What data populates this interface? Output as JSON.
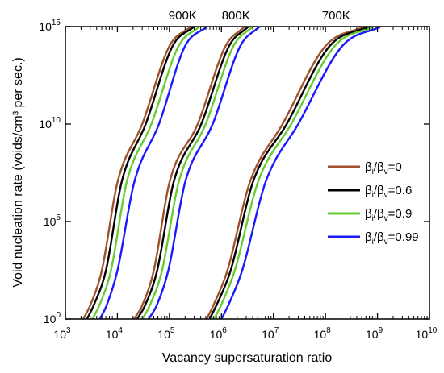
{
  "chart_data": {
    "type": "line",
    "title": "",
    "xlabel": "Vacancy supersaturation ratio",
    "ylabel": "Void nucleation rate (voids/cm³ per sec.)",
    "x_scale": "log",
    "y_scale": "log",
    "xlim": [
      1000,
      10000000000
    ],
    "ylim": [
      1,
      1000000000000000
    ],
    "grid": false,
    "legend_position": "right",
    "x_ticks": [
      {
        "value": 1000,
        "base": "10",
        "exp": "3"
      },
      {
        "value": 10000,
        "base": "10",
        "exp": "4"
      },
      {
        "value": 100000,
        "base": "10",
        "exp": "5"
      },
      {
        "value": 1000000,
        "base": "10",
        "exp": "6"
      },
      {
        "value": 10000000,
        "base": "10",
        "exp": "7"
      },
      {
        "value": 100000000,
        "base": "10",
        "exp": "8"
      },
      {
        "value": 1000000000,
        "base": "10",
        "exp": "9"
      },
      {
        "value": 10000000000,
        "base": "10",
        "exp": "10"
      }
    ],
    "y_ticks": [
      {
        "value": 1,
        "base": "10",
        "exp": "0"
      },
      {
        "value": 100000,
        "base": "10",
        "exp": "5"
      },
      {
        "value": 10000000000,
        "base": "10",
        "exp": "10"
      },
      {
        "value": 1000000000000000,
        "base": "10",
        "exp": "15"
      }
    ],
    "annotations": [
      {
        "text": "900K",
        "at_x": 180000
      },
      {
        "text": "800K",
        "at_x": 1900000
      },
      {
        "text": "700K",
        "at_x": 160000000
      }
    ],
    "legend": [
      {
        "base": "β",
        "sub1": "i",
        "mid": "/β",
        "sub2": "v",
        "suffix": "=0",
        "color": "#a0522d"
      },
      {
        "base": "β",
        "sub1": "i",
        "mid": "/β",
        "sub2": "v",
        "suffix": "=0.6",
        "color": "#000000"
      },
      {
        "base": "β",
        "sub1": "i",
        "mid": "/β",
        "sub2": "v",
        "suffix": "=0.9",
        "color": "#66cc33"
      },
      {
        "base": "β",
        "sub1": "i",
        "mid": "/β",
        "sub2": "v",
        "suffix": "=0.99",
        "color": "#1a1aff"
      }
    ],
    "series": [
      {
        "temperature": "900K",
        "beta_ratio": "0",
        "color": "#a0522d",
        "x": [
          2200,
          3000,
          5000,
          10000,
          30000,
          100000,
          260000
        ],
        "y": [
          1,
          5,
          300,
          10000000,
          10000000000,
          100000000000000,
          1000000000000000
        ]
      },
      {
        "temperature": "900K",
        "beta_ratio": "0.6",
        "color": "#000000",
        "x": [
          2600,
          3500,
          6000,
          12000,
          35000,
          115000,
          300000
        ],
        "y": [
          1,
          5,
          300,
          10000000,
          10000000000,
          100000000000000,
          1000000000000000
        ]
      },
      {
        "temperature": "900K",
        "beta_ratio": "0.9",
        "color": "#66cc33",
        "x": [
          3300,
          4500,
          7500,
          15000,
          45000,
          150000,
          380000
        ],
        "y": [
          1,
          5,
          300,
          10000000,
          10000000000,
          100000000000000,
          1000000000000000
        ]
      },
      {
        "temperature": "900K",
        "beta_ratio": "0.99",
        "color": "#1a1aff",
        "x": [
          4600,
          6200,
          10000,
          21000,
          63000,
          200000,
          530000
        ],
        "y": [
          1,
          5,
          300,
          10000000,
          10000000000,
          100000000000000,
          1000000000000000
        ]
      },
      {
        "temperature": "800K",
        "beta_ratio": "0",
        "color": "#a0522d",
        "x": [
          21000,
          30000,
          50000,
          100000,
          350000,
          1200000,
          2800000
        ],
        "y": [
          1,
          5,
          300,
          10000000,
          10000000000,
          100000000000000,
          1000000000000000
        ]
      },
      {
        "temperature": "800K",
        "beta_ratio": "0.6",
        "color": "#000000",
        "x": [
          24000,
          34000,
          58000,
          120000,
          410000,
          1400000,
          3300000
        ],
        "y": [
          1,
          5,
          300,
          10000000,
          10000000000,
          100000000000000,
          1000000000000000
        ]
      },
      {
        "temperature": "800K",
        "beta_ratio": "0.9",
        "color": "#66cc33",
        "x": [
          30000,
          42000,
          72000,
          150000,
          500000,
          1700000,
          4000000
        ],
        "y": [
          1,
          5,
          300,
          10000000,
          10000000000,
          100000000000000,
          1000000000000000
        ]
      },
      {
        "temperature": "800K",
        "beta_ratio": "0.99",
        "color": "#1a1aff",
        "x": [
          40000,
          57000,
          95000,
          200000,
          680000,
          2300000,
          5400000
        ],
        "y": [
          1,
          5,
          300,
          10000000,
          10000000000,
          100000000000000,
          1000000000000000
        ]
      },
      {
        "temperature": "700K",
        "beta_ratio": "0",
        "color": "#a0522d",
        "x": [
          520000,
          700000,
          1300000,
          3500000,
          15000000,
          100000000,
          560000000
        ],
        "y": [
          1,
          5,
          300,
          10000000,
          10000000000,
          100000000000000,
          1000000000000000
        ]
      },
      {
        "temperature": "700K",
        "beta_ratio": "0.6",
        "color": "#000000",
        "x": [
          590000,
          800000,
          1500000,
          4000000,
          18000000,
          120000000,
          690000000
        ],
        "y": [
          1,
          5,
          300,
          10000000,
          10000000000,
          100000000000000,
          1000000000000000
        ]
      },
      {
        "temperature": "700K",
        "beta_ratio": "0.9",
        "color": "#66cc33",
        "x": [
          720000,
          980000,
          1800000,
          5000000,
          22000000,
          150000000,
          840000000
        ],
        "y": [
          1,
          5,
          300,
          10000000,
          10000000000,
          100000000000000,
          1000000000000000
        ]
      },
      {
        "temperature": "700K",
        "beta_ratio": "0.99",
        "color": "#1a1aff",
        "x": [
          1000000,
          1350000,
          2500000,
          7000000,
          30000000,
          210000000,
          1150000000
        ],
        "y": [
          1,
          5,
          300,
          10000000,
          10000000000,
          100000000000000,
          1000000000000000
        ]
      }
    ]
  }
}
